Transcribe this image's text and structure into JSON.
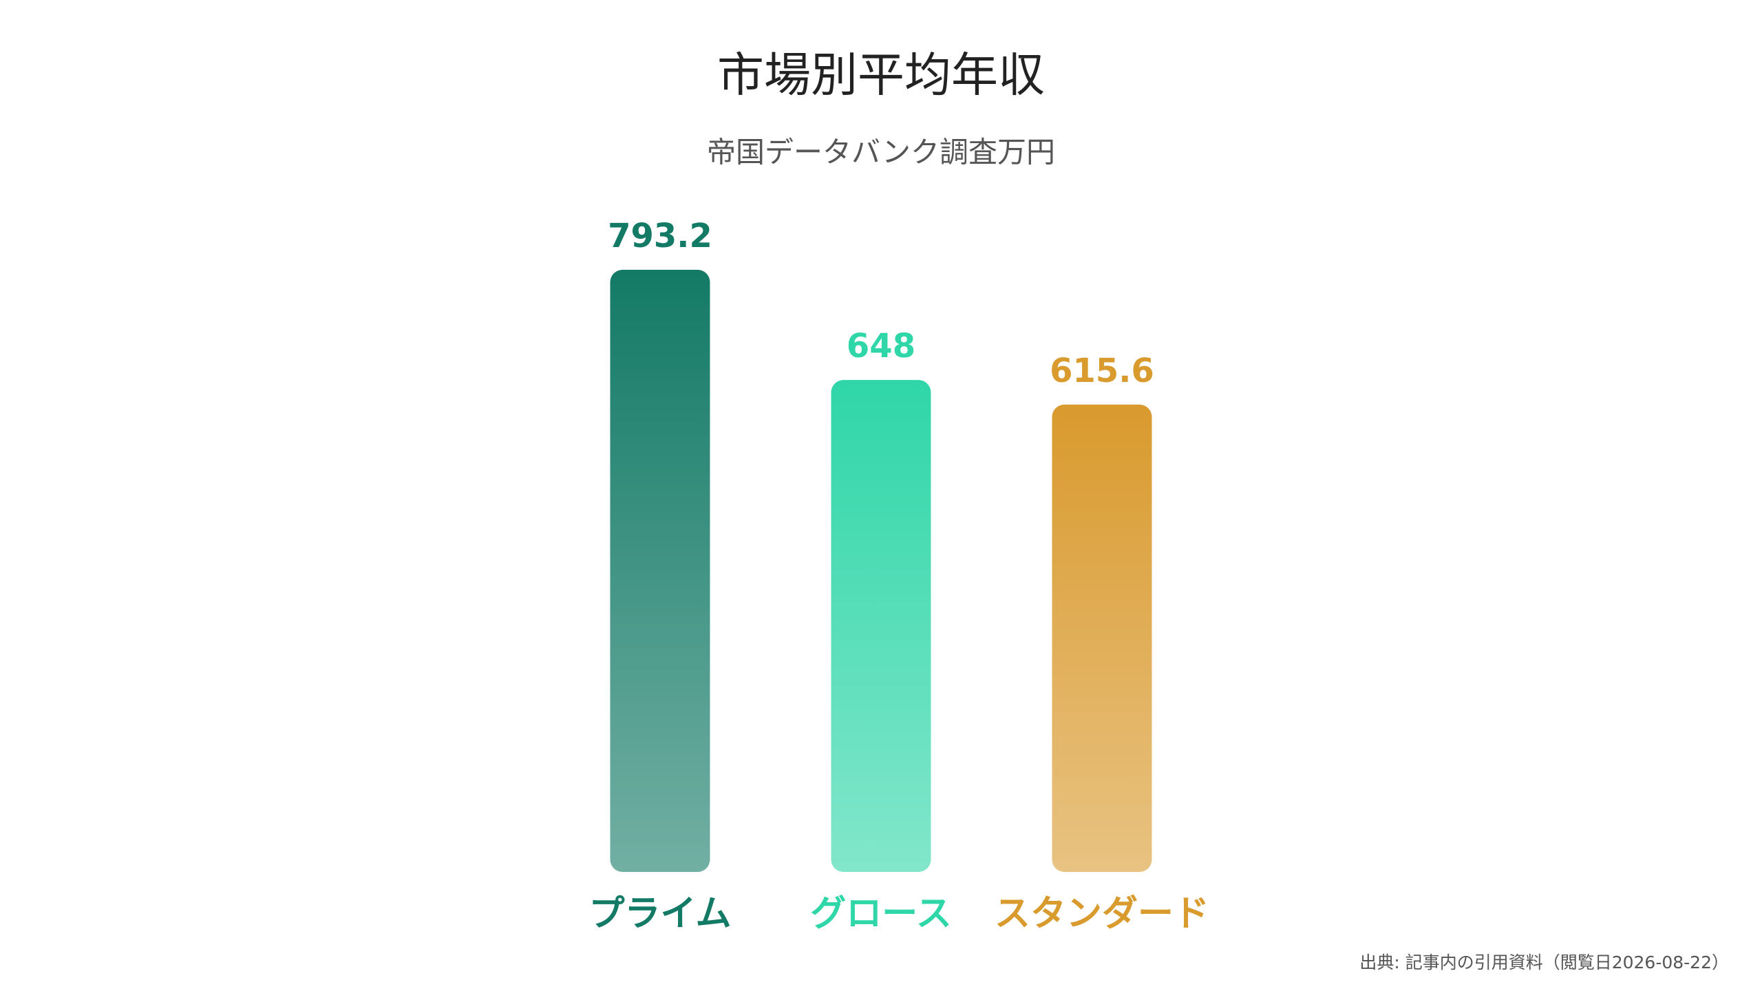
{
  "chart_data": {
    "type": "bar",
    "title": "市場別平均年収",
    "subtitle": "帝国データバンク調査万円",
    "categories": [
      "プライム",
      "グロース",
      "スタンダード"
    ],
    "values": [
      793.2,
      648,
      615.6
    ],
    "colors": [
      "#137a66",
      "#2fd6a8",
      "#d99a2e"
    ],
    "source": "出典: 記事内の引用資料（閲覧日2026-08-22）"
  }
}
